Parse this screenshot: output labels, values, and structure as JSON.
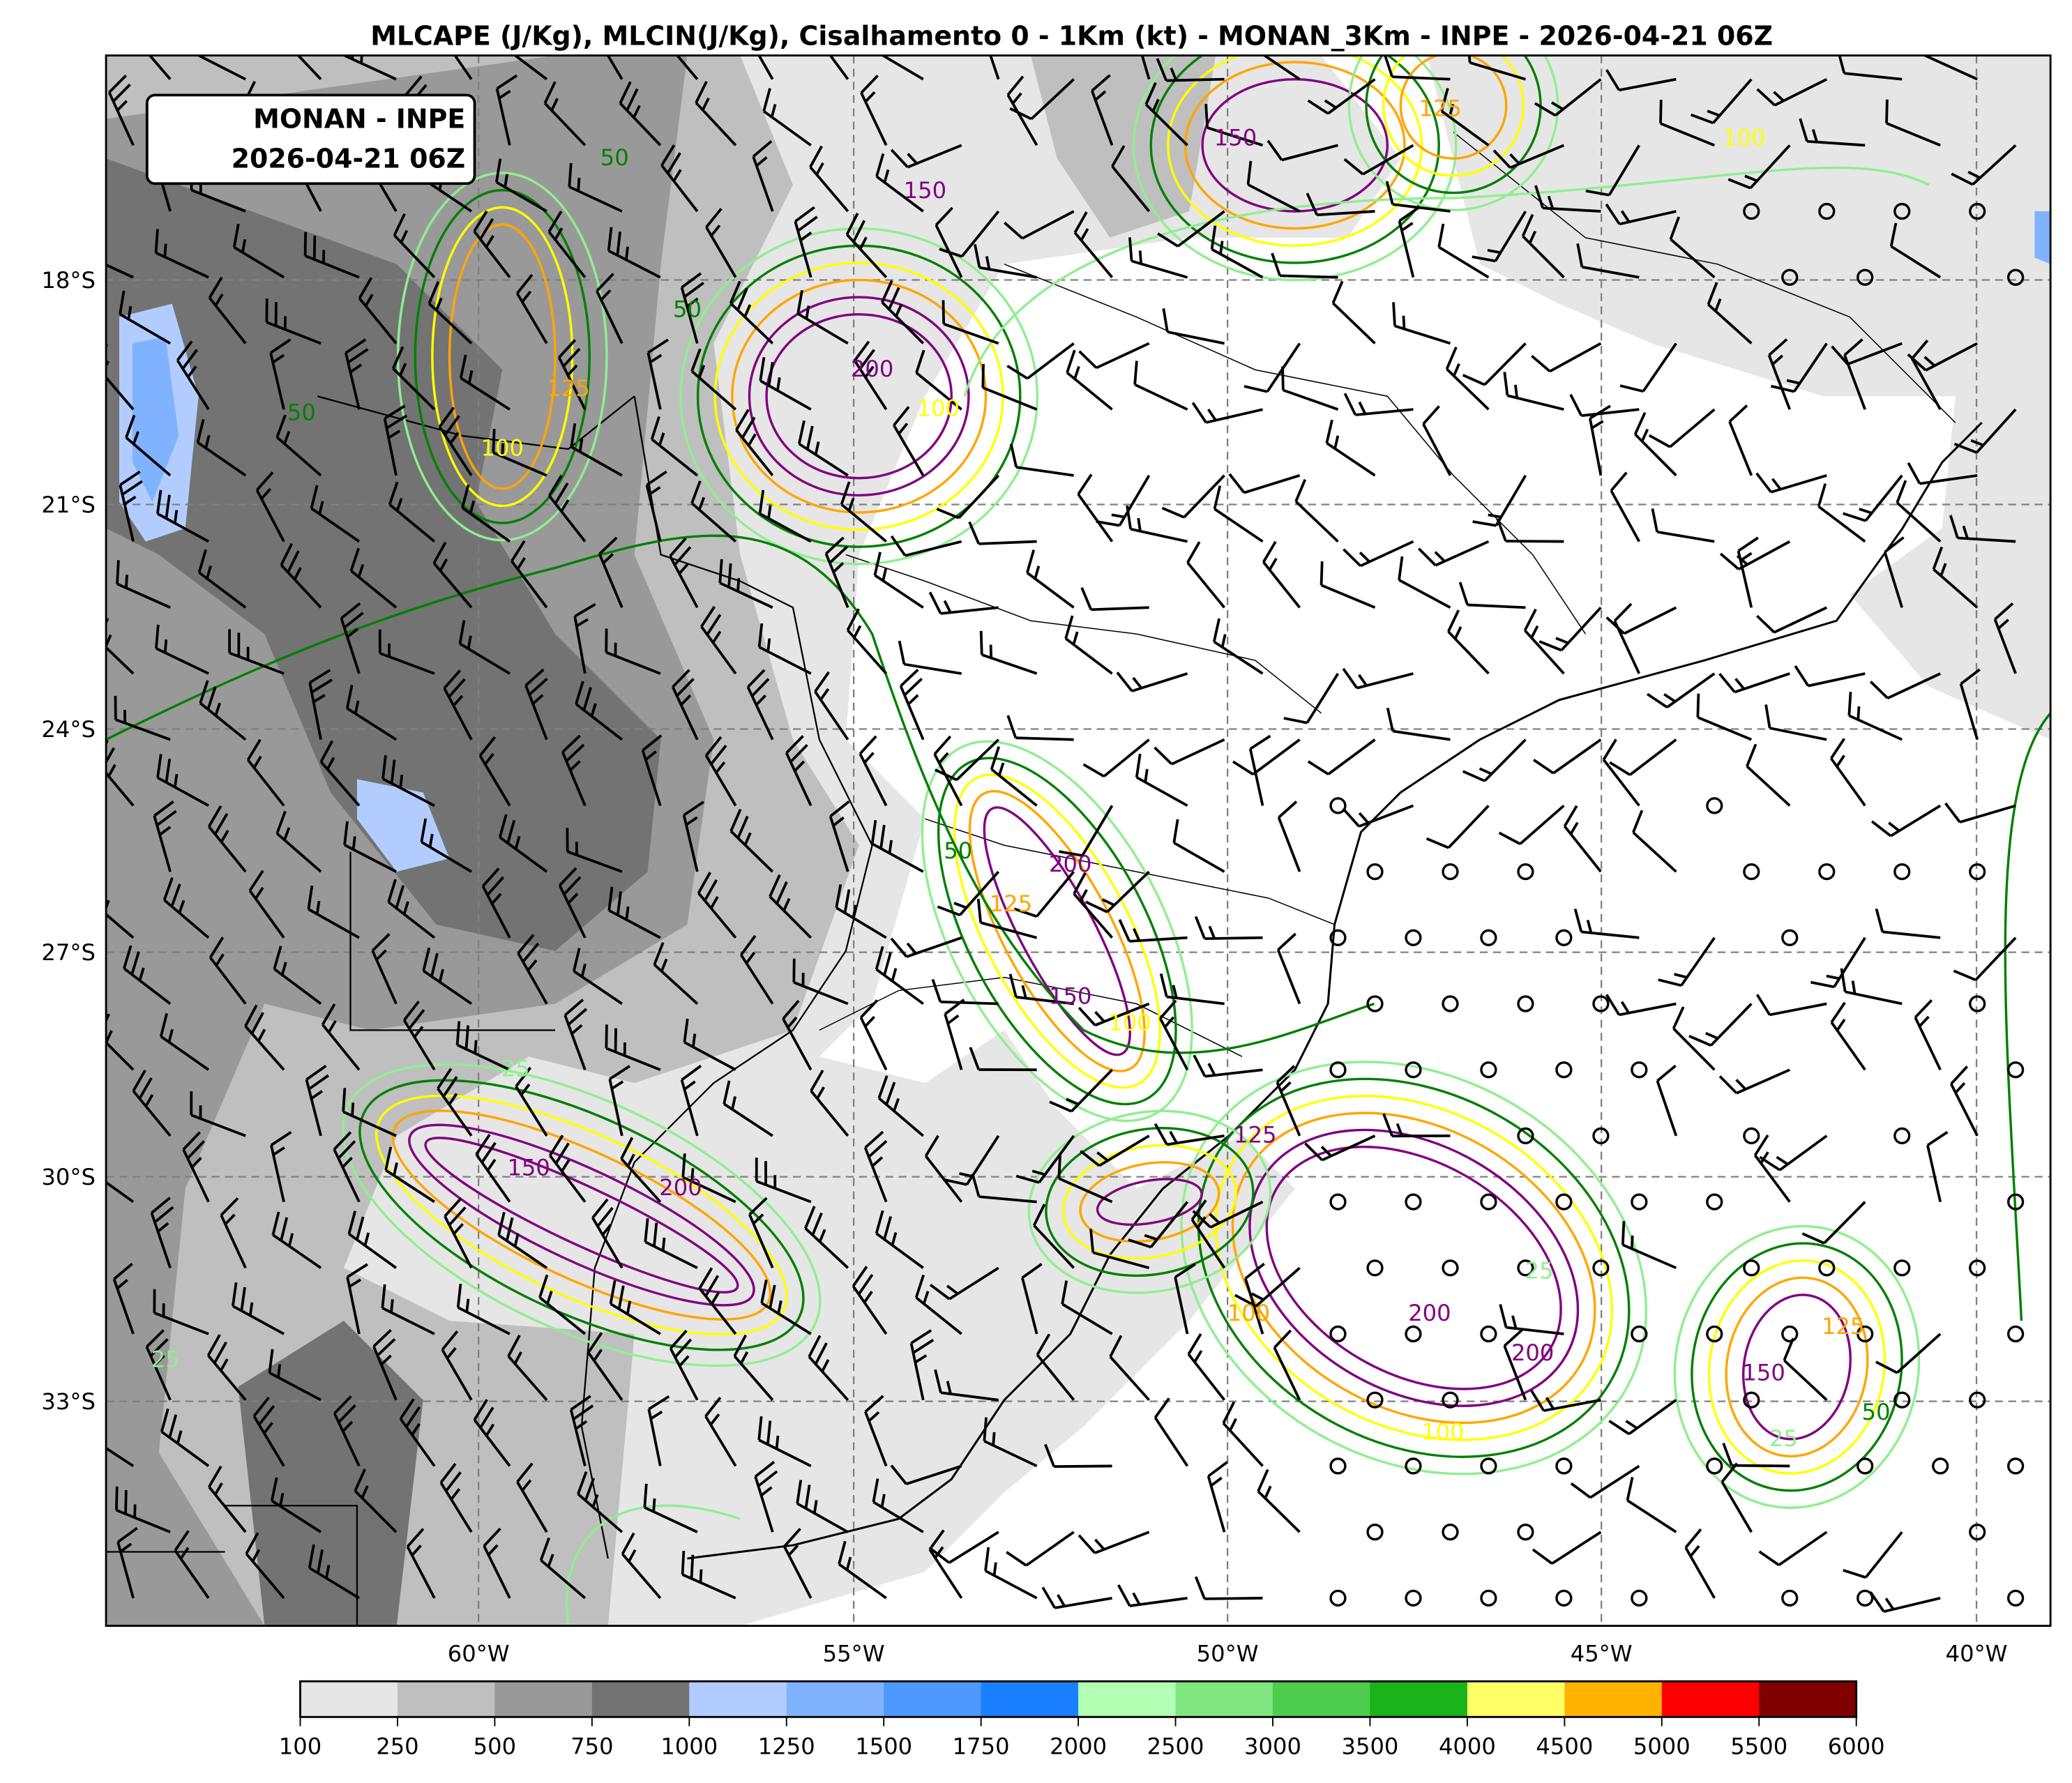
{
  "title": "MLCAPE (J/Kg), MLCIN(J/Kg), Cisalhamento 0 - 1Km (kt) - MONAN_3Km - INPE - 2026-04-21 06Z",
  "label_box": {
    "line1": "MONAN - INPE",
    "line2": "2026-04-21 06Z"
  },
  "map": {
    "projection": "PlateCarree",
    "lon_range": [
      -65,
      -39
    ],
    "lat_range": [
      -36,
      -15
    ],
    "gridlines": "dashed gray",
    "lat_ticks": [
      "18°S",
      "21°S",
      "24°S",
      "27°S",
      "30°S",
      "33°S"
    ],
    "lon_ticks": [
      "60°W",
      "55°W",
      "50°W",
      "45°W",
      "40°W"
    ]
  },
  "colorbar": {
    "levels": [
      "100",
      "250",
      "500",
      "750",
      "1000",
      "1250",
      "1500",
      "1750",
      "2000",
      "2500",
      "3000",
      "3500",
      "4000",
      "4500",
      "5000",
      "5500",
      "6000"
    ],
    "colors": [
      "#e6e6e6",
      "#bfbfbf",
      "#999999",
      "#737373",
      "#b3ccff",
      "#80b3ff",
      "#4d99ff",
      "#1a80ff",
      "#b3ffb3",
      "#80e680",
      "#4dcc4d",
      "#1ab31a",
      "#ffff66",
      "#ffb300",
      "#ff0000",
      "#800000"
    ]
  },
  "mlcin_contours": [
    {
      "level": 25,
      "color": "#90ee90"
    },
    {
      "level": 50,
      "color": "#008000"
    },
    {
      "level": 100,
      "color": "#ffff00"
    },
    {
      "level": 125,
      "color": "#ffa500"
    },
    {
      "level": 150,
      "color": "#800080"
    },
    {
      "level": 200,
      "color": "#800080"
    }
  ],
  "contour_labels": [
    "50",
    "50",
    "50",
    "100",
    "125",
    "150",
    "200",
    "100",
    "200",
    "150",
    "125",
    "100",
    "50",
    "25",
    "150",
    "200",
    "200",
    "200",
    "125",
    "100",
    "25",
    "150",
    "125",
    "50",
    "25",
    "25",
    "100",
    "125",
    "150",
    "100"
  ],
  "wind_barbs": {
    "field": "Cisalhamento 0 - 1Km (kt)",
    "calm_symbol": "circle"
  }
}
